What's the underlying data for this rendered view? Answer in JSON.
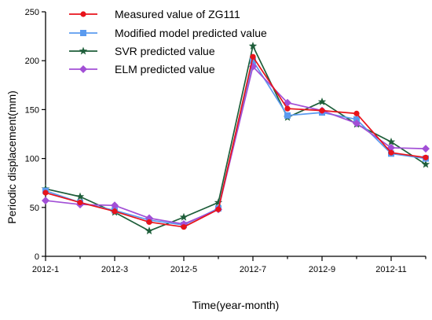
{
  "chart_data": {
    "type": "line",
    "xlabel": "Time(year-month)",
    "ylabel": "Periodic displacement(mm)",
    "x": [
      "2012-1",
      "2012-2",
      "2012-3",
      "2012-4",
      "2012-5",
      "2012-6",
      "2012-7",
      "2012-8",
      "2012-9",
      "2012-10",
      "2012-11",
      "2012-12"
    ],
    "x_tick_labels": [
      "2012-1",
      "2012-3",
      "2012-5",
      "2012-7",
      "2012-9",
      "2012-11"
    ],
    "ylim": [
      0,
      250
    ],
    "y_ticks": [
      0,
      50,
      100,
      150,
      200,
      250
    ],
    "legend_position": "top-left",
    "grid": false,
    "series": [
      {
        "name": "Measured value of ZG111",
        "color": "#e8131b",
        "marker": "circle",
        "values": [
          65,
          55,
          46,
          35,
          30,
          48,
          204,
          151,
          149,
          146,
          106,
          101
        ]
      },
      {
        "name": "Modified model predicted value",
        "color": "#5b9bef",
        "marker": "square",
        "values": [
          67,
          55,
          47,
          37,
          32,
          49,
          200,
          144,
          147,
          140,
          105,
          100
        ]
      },
      {
        "name": "SVR predicted value",
        "color": "#1e5e3a",
        "marker": "star",
        "values": [
          69,
          61,
          45,
          26,
          40,
          55,
          215,
          142,
          158,
          135,
          117,
          94
        ]
      },
      {
        "name": "ELM predicted value",
        "color": "#a24fd6",
        "marker": "diamond",
        "values": [
          57,
          53,
          52,
          39,
          33,
          48,
          194,
          157,
          149,
          136,
          111,
          110
        ]
      }
    ]
  }
}
